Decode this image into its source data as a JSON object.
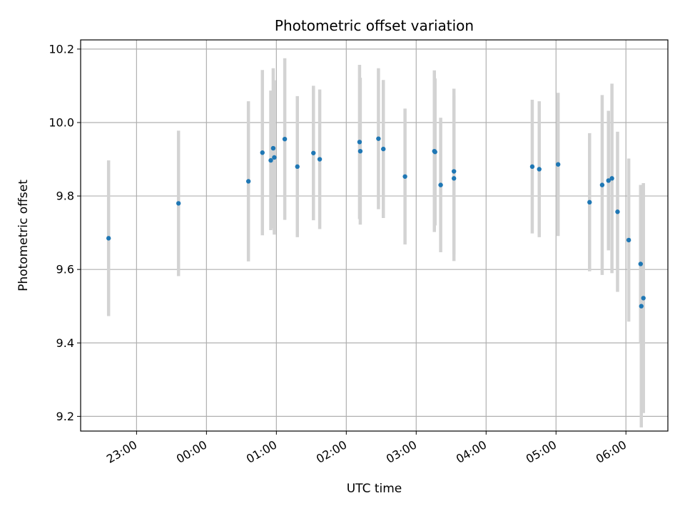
{
  "chart_data": {
    "type": "scatter",
    "title": "Photometric offset variation",
    "xlabel": "UTC time",
    "ylabel": "Photometric offset",
    "xlim_hours": [
      -1.8,
      6.6
    ],
    "ylim": [
      9.16,
      10.225
    ],
    "grid": true,
    "x_ticks": [
      {
        "hour": -1,
        "label": "23:00"
      },
      {
        "hour": 0,
        "label": "00:00"
      },
      {
        "hour": 1,
        "label": "01:00"
      },
      {
        "hour": 2,
        "label": "02:00"
      },
      {
        "hour": 3,
        "label": "03:00"
      },
      {
        "hour": 4,
        "label": "04:00"
      },
      {
        "hour": 5,
        "label": "05:00"
      },
      {
        "hour": 6,
        "label": "06:00"
      }
    ],
    "y_ticks": [
      {
        "value": 9.2,
        "label": "9.2"
      },
      {
        "value": 9.4,
        "label": "9.4"
      },
      {
        "value": 9.6,
        "label": "9.6"
      },
      {
        "value": 9.8,
        "label": "9.8"
      },
      {
        "value": 10.0,
        "label": "10.0"
      },
      {
        "value": 10.2,
        "label": "10.2"
      }
    ],
    "colors": {
      "point": "#1f77b4",
      "errorbar": "#d3d3d3",
      "grid": "#b0b0b0"
    },
    "points": [
      {
        "x": -1.4,
        "y": 9.685,
        "err": 0.212
      },
      {
        "x": -0.4,
        "y": 9.78,
        "err": 0.198
      },
      {
        "x": 0.6,
        "y": 9.84,
        "err": 0.218
      },
      {
        "x": 0.8,
        "y": 9.918,
        "err": 0.225
      },
      {
        "x": 0.92,
        "y": 9.897,
        "err": 0.19
      },
      {
        "x": 0.955,
        "y": 9.93,
        "err": 0.218
      },
      {
        "x": 0.97,
        "y": 9.905,
        "err": 0.21
      },
      {
        "x": 1.12,
        "y": 9.955,
        "err": 0.22
      },
      {
        "x": 1.3,
        "y": 9.88,
        "err": 0.192
      },
      {
        "x": 1.53,
        "y": 9.917,
        "err": 0.183
      },
      {
        "x": 1.62,
        "y": 9.9,
        "err": 0.19
      },
      {
        "x": 2.19,
        "y": 9.947,
        "err": 0.21
      },
      {
        "x": 2.2,
        "y": 9.922,
        "err": 0.2
      },
      {
        "x": 2.46,
        "y": 9.956,
        "err": 0.192
      },
      {
        "x": 2.53,
        "y": 9.928,
        "err": 0.188
      },
      {
        "x": 2.84,
        "y": 9.853,
        "err": 0.185
      },
      {
        "x": 3.26,
        "y": 9.922,
        "err": 0.22
      },
      {
        "x": 3.27,
        "y": 9.92,
        "err": 0.2
      },
      {
        "x": 3.35,
        "y": 9.83,
        "err": 0.183
      },
      {
        "x": 3.54,
        "y": 9.867,
        "err": 0.225
      },
      {
        "x": 3.54,
        "y": 9.848,
        "err": 0.225
      },
      {
        "x": 4.66,
        "y": 9.88,
        "err": 0.182
      },
      {
        "x": 4.76,
        "y": 9.873,
        "err": 0.185
      },
      {
        "x": 5.03,
        "y": 9.886,
        "err": 0.195
      },
      {
        "x": 5.48,
        "y": 9.783,
        "err": 0.188
      },
      {
        "x": 5.66,
        "y": 9.83,
        "err": 0.245
      },
      {
        "x": 5.75,
        "y": 9.842,
        "err": 0.19
      },
      {
        "x": 5.8,
        "y": 9.848,
        "err": 0.258
      },
      {
        "x": 5.88,
        "y": 9.757,
        "err": 0.218
      },
      {
        "x": 6.04,
        "y": 9.68,
        "err": 0.222
      },
      {
        "x": 6.21,
        "y": 9.615,
        "err": 0.215
      },
      {
        "x": 6.22,
        "y": 9.5,
        "err": 0.33
      },
      {
        "x": 6.25,
        "y": 9.522,
        "err": 0.313
      }
    ]
  }
}
